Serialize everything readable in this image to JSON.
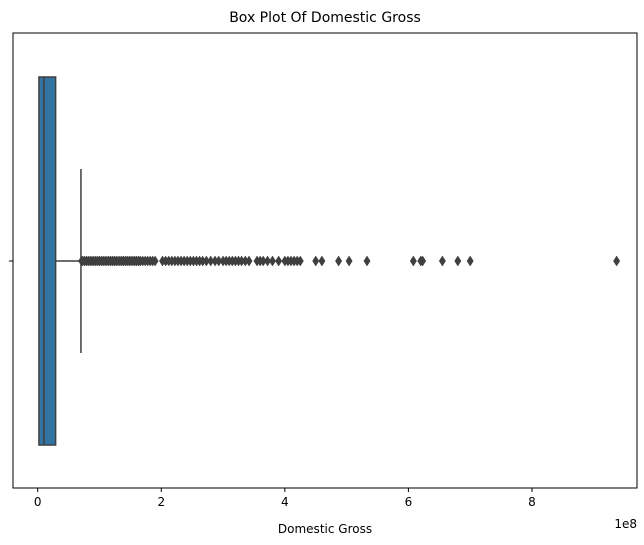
{
  "chart_data": {
    "type": "box",
    "orientation": "horizontal",
    "title": "Box Plot Of Domestic Gross",
    "xlabel": "Domestic Gross",
    "ylabel": "",
    "offset_text": "1e8",
    "xlim": [
      -0.4,
      9.7
    ],
    "x_ticks": [
      0,
      2,
      4,
      6,
      8
    ],
    "x_tick_labels": [
      "0",
      "2",
      "4",
      "6",
      "8"
    ],
    "y_tick_labels": [
      ""
    ],
    "grid": false,
    "box": {
      "q1": 0.02,
      "median": 0.1,
      "q3": 0.29,
      "whisker_low": 0.0,
      "whisker_high": 0.7
    },
    "box_color": "#3274a1",
    "outliers": [
      0.71,
      0.73,
      0.76,
      0.79,
      0.82,
      0.85,
      0.88,
      0.91,
      0.94,
      0.97,
      1.0,
      1.03,
      1.06,
      1.09,
      1.12,
      1.15,
      1.18,
      1.21,
      1.24,
      1.27,
      1.3,
      1.33,
      1.36,
      1.39,
      1.42,
      1.45,
      1.48,
      1.51,
      1.54,
      1.57,
      1.6,
      1.63,
      1.66,
      1.7,
      1.74,
      1.78,
      1.82,
      1.86,
      1.9,
      2.02,
      2.07,
      2.12,
      2.17,
      2.22,
      2.27,
      2.32,
      2.37,
      2.42,
      2.47,
      2.52,
      2.57,
      2.62,
      2.67,
      2.73,
      2.8,
      2.87,
      2.93,
      3.0,
      3.05,
      3.1,
      3.15,
      3.2,
      3.25,
      3.3,
      3.36,
      3.42,
      3.55,
      3.6,
      3.65,
      3.72,
      3.8,
      3.9,
      4.0,
      4.05,
      4.1,
      4.15,
      4.2,
      4.25,
      4.5,
      4.6,
      4.87,
      5.04,
      5.33,
      6.08,
      6.2,
      6.23,
      6.55,
      6.8,
      7.0,
      9.37
    ]
  }
}
